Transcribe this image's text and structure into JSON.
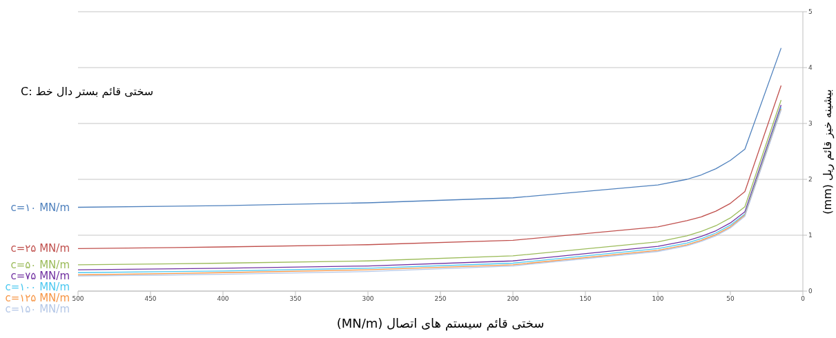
{
  "chart_data": {
    "type": "line",
    "xlabel": "سختی قائم سیستم های اتصال (MN/m)",
    "ylabel": "بیشینه خیز قائم ریل (mm)",
    "annotations": [
      "C: سختی قائم بستر دال خط"
    ],
    "x": [
      500,
      400,
      300,
      200,
      100,
      80,
      70,
      60,
      50,
      40,
      15
    ],
    "series": [
      {
        "name": "c=۱۰ MN/m",
        "color": "#4f81bd",
        "values": [
          1.5,
          1.53,
          1.58,
          1.67,
          1.9,
          2.0,
          2.08,
          2.19,
          2.34,
          2.54,
          4.35
        ]
      },
      {
        "name": "c=۲۵ MN/m",
        "color": "#c0504d",
        "values": [
          0.76,
          0.79,
          0.83,
          0.91,
          1.15,
          1.26,
          1.33,
          1.43,
          1.57,
          1.78,
          3.68
        ]
      },
      {
        "name": "c=۵۰ MN/m",
        "color": "#9bbb59",
        "values": [
          0.47,
          0.5,
          0.54,
          0.63,
          0.88,
          0.99,
          1.07,
          1.17,
          1.31,
          1.51,
          3.42
        ]
      },
      {
        "name": "c=۷۵ MN/m",
        "color": "#7030a0",
        "values": [
          0.38,
          0.41,
          0.45,
          0.54,
          0.8,
          0.9,
          0.98,
          1.08,
          1.22,
          1.42,
          3.33
        ]
      },
      {
        "name": "c=۱۰۰ MN/m",
        "color": "#4bc8f0",
        "values": [
          0.33,
          0.36,
          0.41,
          0.5,
          0.76,
          0.86,
          0.94,
          1.04,
          1.18,
          1.38,
          3.29
        ]
      },
      {
        "name": "c=۱۲۵ MN/m",
        "color": "#f79646",
        "values": [
          0.29,
          0.33,
          0.38,
          0.47,
          0.73,
          0.83,
          0.91,
          1.01,
          1.15,
          1.36,
          3.26
        ]
      },
      {
        "name": "c=۱۵۰ MN/m",
        "color": "#b4c7e7",
        "values": [
          0.27,
          0.3,
          0.35,
          0.45,
          0.71,
          0.81,
          0.89,
          0.99,
          1.13,
          1.34,
          3.24
        ]
      }
    ],
    "xlim": [
      500,
      0
    ],
    "xticks": [
      500,
      450,
      400,
      350,
      300,
      250,
      200,
      150,
      100,
      50,
      0
    ],
    "ylim": [
      0,
      5
    ],
    "yticks": [
      0,
      1,
      2,
      3,
      4,
      5
    ],
    "grid": "y"
  }
}
